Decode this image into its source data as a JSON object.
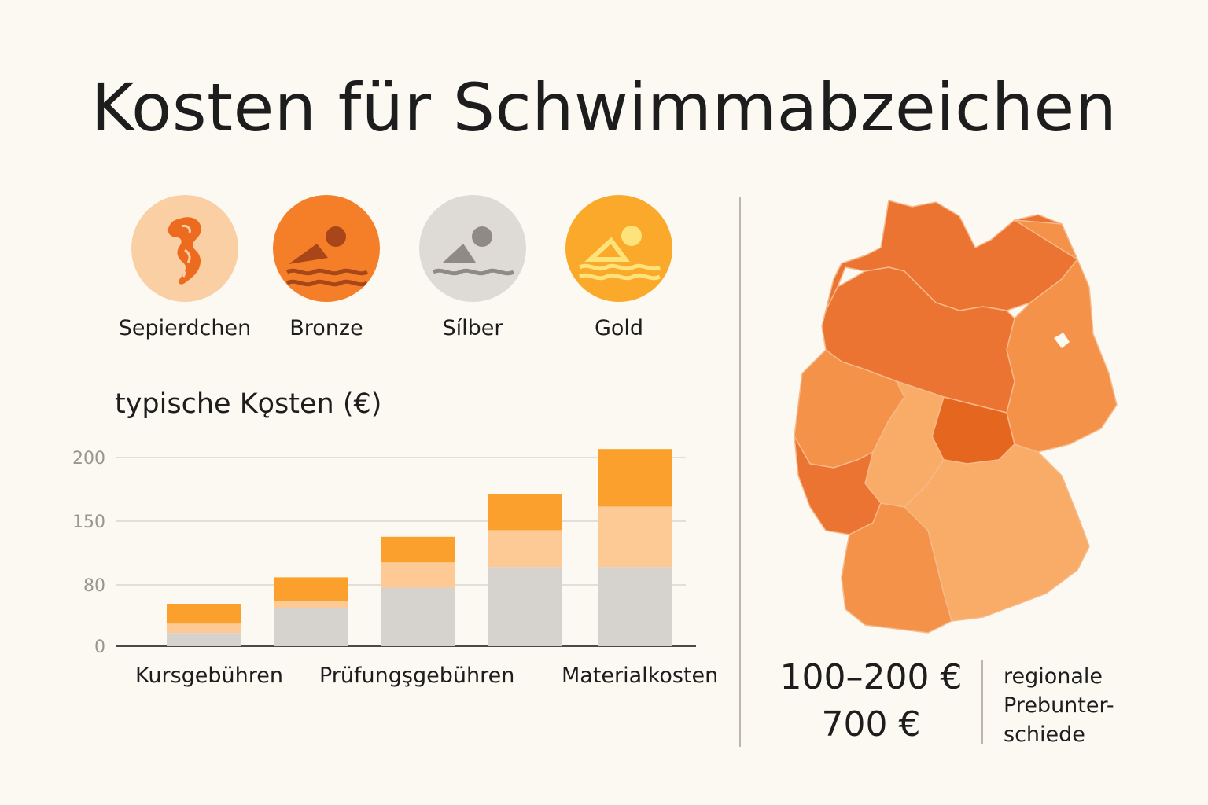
{
  "title": "Kosten für Schwimmabzeichen",
  "badges": [
    {
      "label": "Sepierdchen",
      "icon": "seahorse-icon",
      "color": "#f9cfa3"
    },
    {
      "label": "Bronze",
      "icon": "swimmer-icon",
      "color": "#f47f28"
    },
    {
      "label": "Sílber",
      "icon": "swimmer-icon",
      "color": "#dedad6"
    },
    {
      "label": "Gold",
      "icon": "swimmer-icon",
      "color": "#fba92b"
    }
  ],
  "chart_data": {
    "type": "bar",
    "stacked": true,
    "title": "typische Kǫsten (€)",
    "y_ticks": [
      "200",
      "150",
      "80",
      "0"
    ],
    "ylim": [
      0,
      200
    ],
    "grid": true,
    "category_labels": [
      "Kursgebühren",
      "Prüfungşgebühren",
      "Materialkosten"
    ],
    "series_colors": [
      "#d6d2cd",
      "#fdc995",
      "#fba02c"
    ],
    "bars": [
      {
        "segments": [
          14,
          10,
          21
        ]
      },
      {
        "segments": [
          40,
          8,
          25
        ]
      },
      {
        "segments": [
          62,
          27,
          27
        ]
      },
      {
        "segments": [
          84,
          39,
          38
        ]
      },
      {
        "segments": [
          84,
          64,
          61
        ]
      }
    ]
  },
  "map": {
    "name": "germany-map",
    "colors": {
      "dark": "#ec7432",
      "medium": "#f4924a",
      "light": "#f8ac68",
      "darkest": "#e5671f"
    }
  },
  "prices": {
    "range": "100–200 €",
    "max": "700 €"
  },
  "note_lines": [
    "regionale",
    "Prebunter-",
    "schiede"
  ]
}
